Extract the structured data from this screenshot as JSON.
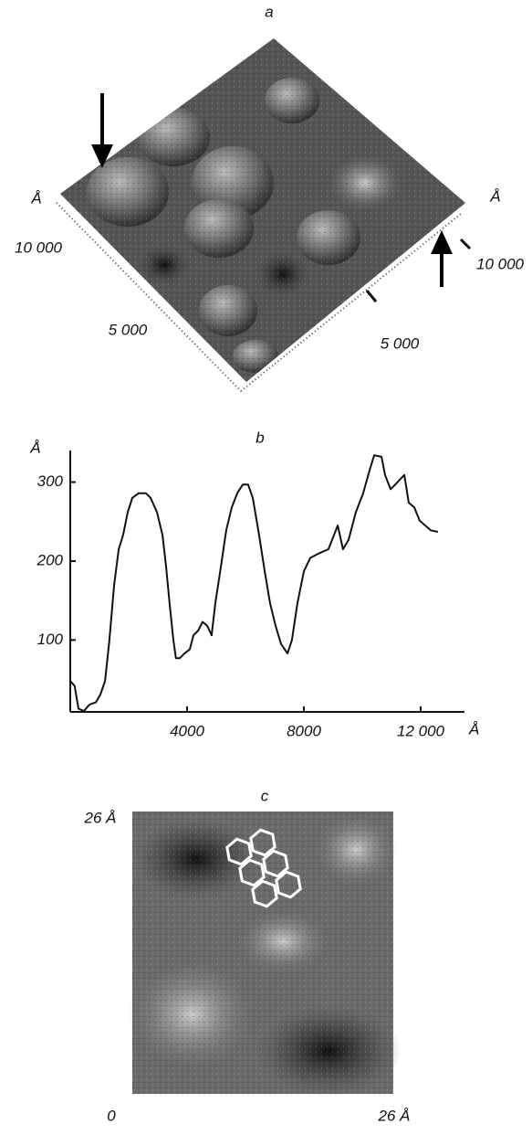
{
  "panel_a": {
    "label": "a",
    "z_unit_left": "Å",
    "left_axis_max": "10 000",
    "left_axis_mid": "5 000",
    "z_unit_right": "Å",
    "right_axis_max": "10 000",
    "right_axis_mid": "5 000"
  },
  "chart_data": {
    "type": "line",
    "title": "b",
    "x": [
      0,
      150,
      280,
      470,
      625,
      700,
      875,
      1030,
      1190,
      1340,
      1500,
      1660,
      1810,
      1970,
      2125,
      2340,
      2590,
      2750,
      2970,
      3160,
      3280,
      3400,
      3530,
      3620,
      3750,
      3910,
      4090,
      4220,
      4380,
      4530,
      4690,
      4840,
      4970,
      5160,
      5340,
      5530,
      5720,
      5910,
      6090,
      6250,
      6440,
      6660,
      6840,
      7030,
      7220,
      7440,
      7590,
      7780,
      8000,
      8220,
      8530,
      8840,
      9160,
      9340,
      9530,
      9780,
      10030,
      10250,
      10410,
      10660,
      10780,
      10970,
      11130,
      11280,
      11440,
      11590,
      11780,
      11970,
      12160,
      12340,
      12590
    ],
    "series": [
      {
        "color": "#111111",
        "values": [
          48,
          42,
          13,
          10,
          17,
          19,
          21,
          31,
          48,
          100,
          169,
          215,
          233,
          262,
          280,
          286,
          286,
          280,
          262,
          233,
          193,
          147,
          100,
          77,
          77,
          83,
          88,
          106,
          112,
          123,
          118,
          106,
          147,
          193,
          239,
          268,
          286,
          297,
          297,
          280,
          239,
          187,
          147,
          118,
          95,
          83,
          100,
          147,
          187,
          204,
          210,
          215,
          245,
          215,
          227,
          262,
          286,
          315,
          334,
          332,
          309,
          291,
          297,
          303,
          309,
          274,
          268,
          251,
          245,
          239,
          237
        ]
      }
    ],
    "xlim": [
      0,
      13500
    ],
    "ylim": [
      9,
      340
    ],
    "xticks": [
      4000,
      8000,
      {
        "value": 12000,
        "label": "12 000"
      }
    ],
    "yticks": [
      100,
      200,
      300
    ],
    "x_unit": "Å",
    "y_unit": "Å"
  },
  "panel_c": {
    "label": "c",
    "y_max": "26 Å",
    "origin": "0",
    "x_max": "26 Å"
  }
}
